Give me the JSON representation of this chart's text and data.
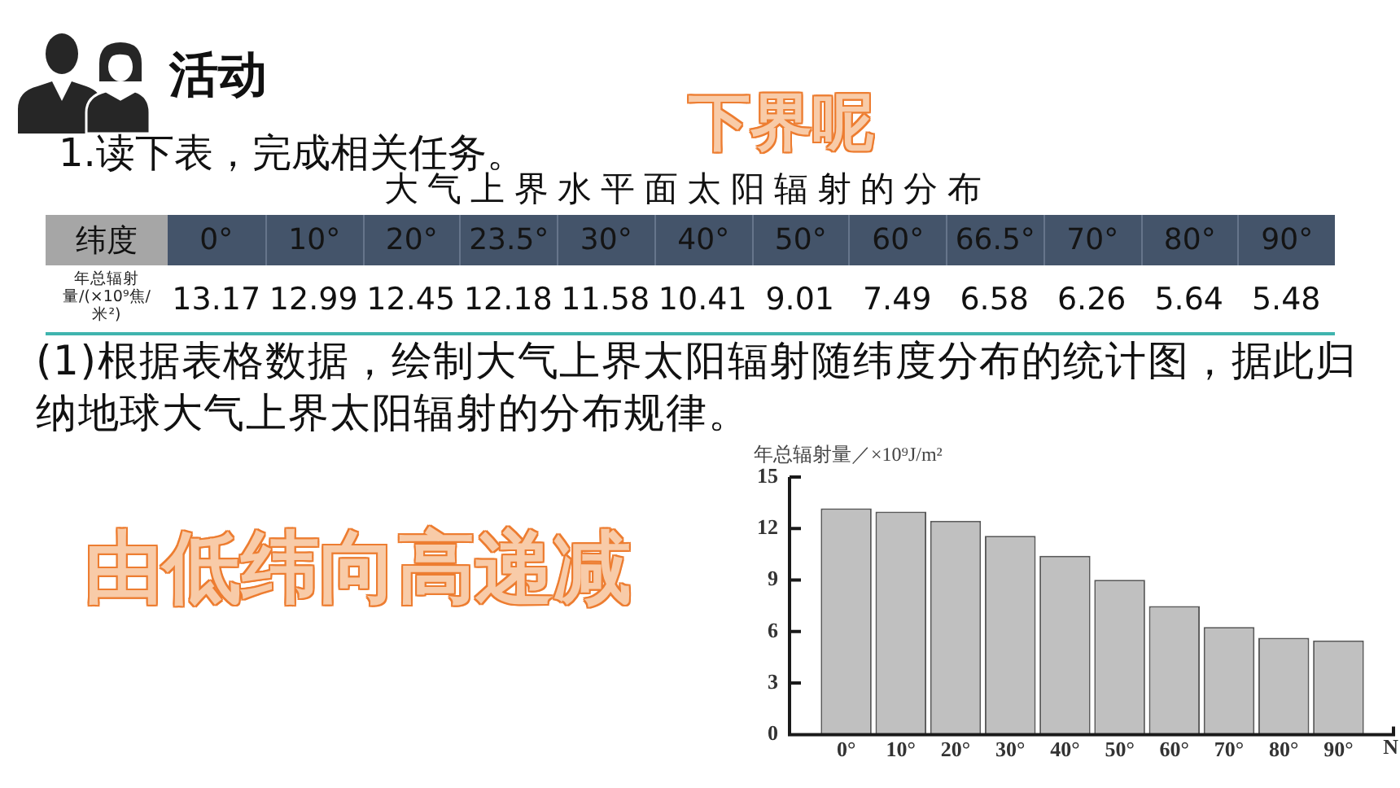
{
  "chart_data": [
    {
      "type": "other",
      "title": "大气上界水平面太阳辐射的分布",
      "xlabel": "纬度",
      "ylabel": "年总辐射量/(×10⁹焦/米²)",
      "categories": [
        "0°",
        "10°",
        "20°",
        "23.5°",
        "30°",
        "40°",
        "50°",
        "60°",
        "66.5°",
        "70°",
        "80°",
        "90°"
      ],
      "values": [
        13.17,
        12.99,
        12.45,
        12.18,
        11.58,
        10.41,
        9.01,
        7.49,
        6.58,
        6.26,
        5.64,
        5.48
      ],
      "data_labels": true,
      "annotations": [
        "活动",
        "1.读下表，完成相关任务。",
        "下界呢"
      ]
    },
    {
      "type": "bar",
      "ylabel": "年总辐射量／×10⁹J/m²",
      "xlabel": "N",
      "categories": [
        "0°",
        "10°",
        "20°",
        "30°",
        "40°",
        "50°",
        "60°",
        "70°",
        "80°",
        "90°"
      ],
      "values": [
        13.17,
        12.99,
        12.45,
        11.58,
        10.41,
        9.01,
        7.49,
        6.26,
        5.64,
        5.48
      ],
      "color": "#c0c0c0",
      "ylim": [
        0,
        15
      ],
      "yticks": [
        0,
        3,
        6,
        9,
        12,
        15
      ],
      "annotations": [
        "(1)根据表格数据，绘制大气上界太阳辐射随纬度分布的统计图，据此归纳地球大气上界太阳辐射的分布规律。",
        "由低纬向高递减"
      ]
    }
  ]
}
